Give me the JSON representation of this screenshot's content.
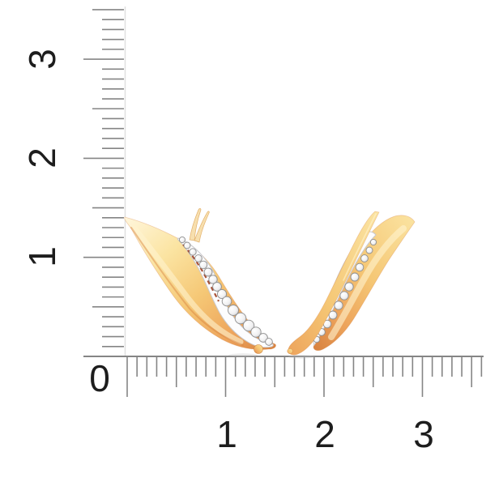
{
  "figure": {
    "description": "Pair of rose-gold leaf-shaped ear-climber earrings with diamond pave, photographed on white against a centimeter scale",
    "left_earring": "front view: curved gold leaf with white-gold channel of round diamonds",
    "right_earring": "three-quarter view: gold leaf with diamond row and long ear-wire loop",
    "left_diamond_count": 16,
    "right_diamond_count": 12
  },
  "rulers": {
    "unit": "cm",
    "origin_label": "0",
    "vertical": {
      "labels": [
        "1",
        "2",
        "3"
      ],
      "min": 0,
      "max": 3.5,
      "minor_step": 0.1
    },
    "horizontal": {
      "labels": [
        "1",
        "2",
        "3"
      ],
      "min": 0,
      "max": 3.6,
      "minor_step": 0.1
    }
  },
  "colors": {
    "background": "#ffffff",
    "tick": "#858585",
    "ruler_edge": "#e0e0e0",
    "label": "#1d1d1d",
    "gold_1": "#fff6dc",
    "gold_2": "#fbe4a2",
    "gold_3": "#f5c775",
    "gold_4": "#eda45c",
    "gold_5": "#d7813f",
    "maroon_accent": "#993414",
    "diamond_stroke": "#8f8f8f",
    "channel_fill": "#fdfdfe",
    "channel_stroke": "#c9c9cd"
  }
}
